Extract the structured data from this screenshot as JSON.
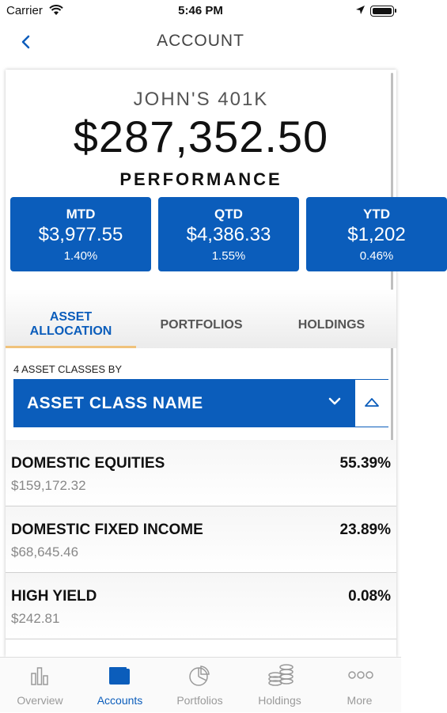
{
  "status_bar": {
    "carrier": "Carrier",
    "time": "5:46 PM"
  },
  "nav": {
    "title": "ACCOUNT"
  },
  "account": {
    "name": "JOHN'S 401K",
    "balance": "$287,352.50"
  },
  "performance": {
    "title": "PERFORMANCE",
    "tiles": [
      {
        "label": "MTD",
        "amount": "$3,977.55",
        "percent": "1.40%"
      },
      {
        "label": "QTD",
        "amount": "$4,386.33",
        "percent": "1.55%"
      },
      {
        "label": "YTD",
        "amount": "$1,202",
        "percent": "0.46%"
      }
    ]
  },
  "tabs": {
    "asset_line1": "ASSET",
    "asset_line2": "ALLOCATION",
    "portfolios": "PORTFOLIOS",
    "holdings": "HOLDINGS"
  },
  "asset_classes": {
    "caption": "4 ASSET CLASSES BY",
    "dropdown_value": "ASSET CLASS NAME",
    "rows": [
      {
        "name": "DOMESTIC EQUITIES",
        "value": "$159,172.32",
        "percent": "55.39%"
      },
      {
        "name": "DOMESTIC FIXED INCOME",
        "value": "$68,645.46",
        "percent": "23.89%"
      },
      {
        "name": "HIGH YIELD",
        "value": "$242.81",
        "percent": "0.08%"
      }
    ]
  },
  "tab_bar": {
    "items": [
      {
        "label": "Overview",
        "icon": "bar-chart-icon"
      },
      {
        "label": "Accounts",
        "icon": "wallet-icon",
        "active": true
      },
      {
        "label": "Portfolios",
        "icon": "pie-chart-icon"
      },
      {
        "label": "Holdings",
        "icon": "coins-icon"
      },
      {
        "label": "More",
        "icon": "more-dots-icon"
      }
    ]
  },
  "colors": {
    "brand_blue": "#0b5dbb",
    "tab_underline": "#f0c27b",
    "inactive_gray": "#9a9a9a"
  }
}
